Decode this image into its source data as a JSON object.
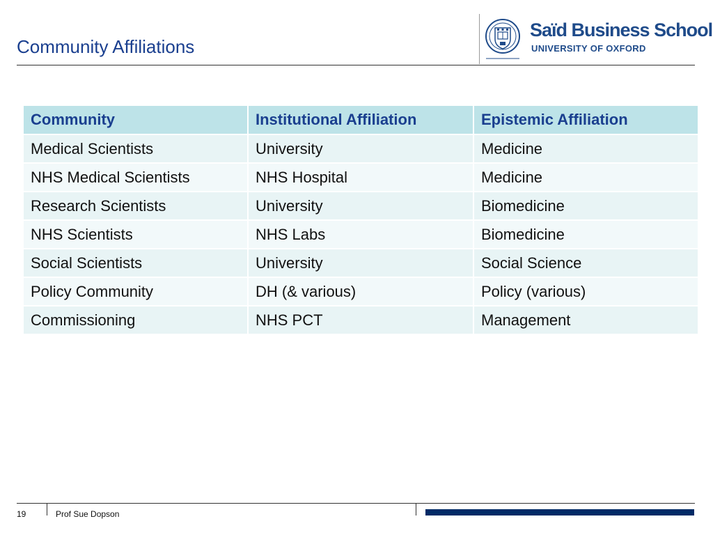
{
  "slide": {
    "title": "Community Affiliations",
    "page_number": "19",
    "author": "Prof Sue Dopson"
  },
  "logo": {
    "name": "Saïd Business School",
    "subtitle": "UNIVERSITY OF OXFORD",
    "crest_icon": "oxford-crest-icon",
    "color": "#1f4b8a"
  },
  "table": {
    "headers": [
      "Community",
      "Institutional Affiliation",
      "Epistemic  Affiliation"
    ],
    "rows": [
      [
        "Medical Scientists",
        "University",
        "Medicine"
      ],
      [
        "NHS Medical Scientists",
        "NHS Hospital",
        "Medicine"
      ],
      [
        "Research Scientists",
        "University",
        "Biomedicine"
      ],
      [
        "NHS Scientists",
        "NHS Labs",
        "Biomedicine"
      ],
      [
        "Social Scientists",
        "University",
        "Social Science"
      ],
      [
        "Policy Community",
        "DH (& various)",
        "Policy (various)"
      ],
      [
        "Commissioning",
        "NHS PCT",
        "Management"
      ]
    ]
  },
  "colors": {
    "title": "#1a3f8f",
    "header_bg": "#bde3e8",
    "row_bg": "#e8f4f5",
    "footer_bar": "#002a66"
  }
}
